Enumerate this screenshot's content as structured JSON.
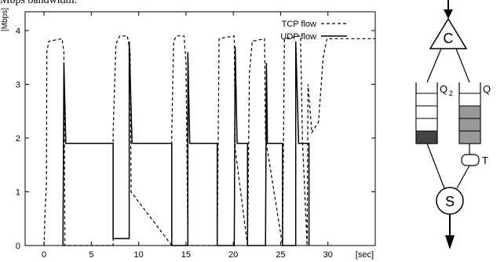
{
  "header": {
    "partial_title": "Mbps bandwidth."
  },
  "chart_data": {
    "type": "line",
    "title": "",
    "xlabel": "[sec]",
    "ylabel": "[Mbps]",
    "xlim": [
      -2,
      35
    ],
    "ylim": [
      0,
      4.35
    ],
    "x_ticks": [
      "0",
      "5",
      "10",
      "15",
      "20",
      "25",
      "30"
    ],
    "y_ticks": [
      "0",
      "1",
      "2",
      "3",
      "4"
    ],
    "legend_position": "top-right",
    "grid": false,
    "series": [
      {
        "name": "TCP flow",
        "style": "dashed",
        "points": [
          [
            0.0,
            0.0
          ],
          [
            0.1,
            0.6
          ],
          [
            0.25,
            1.1
          ],
          [
            0.3,
            3.6
          ],
          [
            0.5,
            3.8
          ],
          [
            1.9,
            3.85
          ],
          [
            2.1,
            3.6
          ],
          [
            2.2,
            0.2
          ],
          [
            2.2,
            0.0
          ],
          [
            7.3,
            0.0
          ],
          [
            7.3,
            2.1
          ],
          [
            7.6,
            3.75
          ],
          [
            8.0,
            3.9
          ],
          [
            8.8,
            3.9
          ],
          [
            9.1,
            3.6
          ],
          [
            9.2,
            1.0
          ],
          [
            13.5,
            0.0
          ],
          [
            13.5,
            2.1
          ],
          [
            13.7,
            3.8
          ],
          [
            14.0,
            3.9
          ],
          [
            14.8,
            3.9
          ],
          [
            15.0,
            3.4
          ],
          [
            15.2,
            0.0
          ],
          [
            18.3,
            0.0
          ],
          [
            18.5,
            3.85
          ],
          [
            20.1,
            3.9
          ],
          [
            20.2,
            1.8
          ],
          [
            21.5,
            0.0
          ],
          [
            21.7,
            3.2
          ],
          [
            22.0,
            3.8
          ],
          [
            23.3,
            3.85
          ],
          [
            23.4,
            2.0
          ],
          [
            25.2,
            0.0
          ],
          [
            25.4,
            3.85
          ],
          [
            27.1,
            3.9
          ],
          [
            27.3,
            2.0
          ],
          [
            27.8,
            0.0
          ],
          [
            27.9,
            3.0
          ],
          [
            28.3,
            2.1
          ],
          [
            29.0,
            2.3
          ],
          [
            29.5,
            3.5
          ],
          [
            29.9,
            3.85
          ],
          [
            35.0,
            3.85
          ]
        ]
      },
      {
        "name": "UDP flow",
        "style": "solid",
        "points": [
          [
            2.0,
            0.0
          ],
          [
            2.1,
            3.4
          ],
          [
            2.3,
            1.9
          ],
          [
            7.3,
            1.9
          ],
          [
            7.3,
            0.13
          ],
          [
            9.0,
            0.13
          ],
          [
            9.0,
            3.8
          ],
          [
            9.3,
            1.9
          ],
          [
            13.5,
            1.9
          ],
          [
            13.5,
            0.0
          ],
          [
            15.2,
            0.0
          ],
          [
            15.2,
            3.6
          ],
          [
            15.4,
            1.9
          ],
          [
            18.3,
            1.9
          ],
          [
            18.3,
            0.0
          ],
          [
            20.1,
            0.0
          ],
          [
            20.2,
            3.7
          ],
          [
            20.4,
            1.9
          ],
          [
            21.5,
            1.9
          ],
          [
            21.5,
            0.0
          ],
          [
            23.4,
            0.0
          ],
          [
            23.5,
            3.4
          ],
          [
            23.6,
            1.9
          ],
          [
            25.2,
            1.9
          ],
          [
            25.2,
            0.0
          ],
          [
            26.6,
            0.0
          ],
          [
            26.6,
            3.8
          ],
          [
            26.9,
            1.9
          ],
          [
            28.0,
            1.9
          ],
          [
            28.0,
            0.0
          ]
        ]
      }
    ]
  },
  "diagram": {
    "controller_label": "C",
    "scheduler_label": "S",
    "queue_left_label": "Q",
    "queue_left_sub": "2",
    "queue_right_label": "Q",
    "token_label": "T"
  }
}
